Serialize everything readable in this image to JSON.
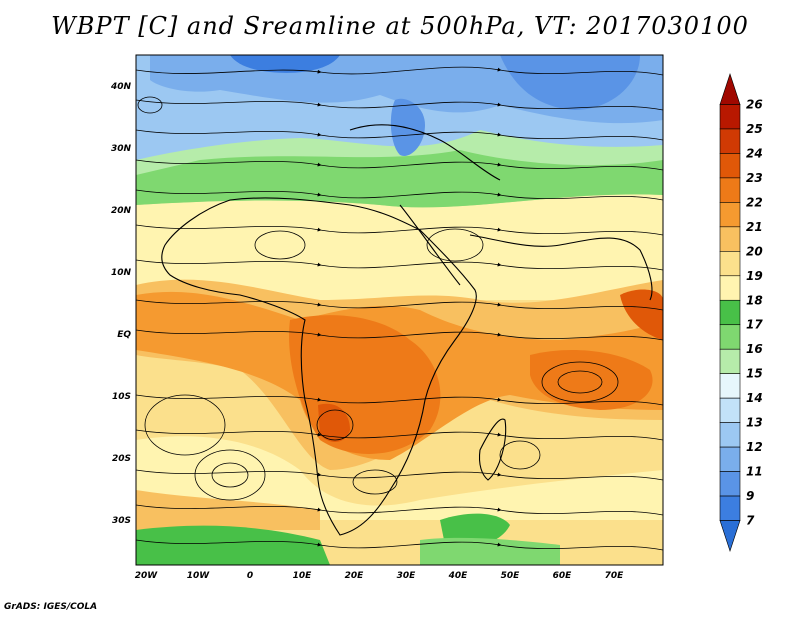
{
  "title": "WBPT [C] and Sreamline at 500hPa, VT: 2017030100",
  "footer": "GrADS: IGES/COLA",
  "map": {
    "lat_labels": [
      "40N",
      "30N",
      "20N",
      "10N",
      "EQ",
      "10S",
      "20S",
      "30S"
    ],
    "lon_labels": [
      "20W",
      "10W",
      "0",
      "10E",
      "20E",
      "30E",
      "40E",
      "50E",
      "60E",
      "70E"
    ],
    "lon_range": [
      -22,
      80
    ],
    "lat_range": [
      -36,
      45
    ]
  },
  "colorbar": {
    "levels": [
      "7",
      "9",
      "11",
      "12",
      "13",
      "14",
      "15",
      "16",
      "17",
      "18",
      "19",
      "20",
      "21",
      "22",
      "23",
      "24",
      "25",
      "26"
    ],
    "colors": [
      "#2a6fd6",
      "#3c7ee0",
      "#5a94e6",
      "#7aaeec",
      "#9cc8f2",
      "#c2e2f8",
      "#e6f7fc",
      "#b6ecaa",
      "#7fd870",
      "#48c048",
      "#fff4b0",
      "#fbe08c",
      "#f8c060",
      "#f59a30",
      "#ee7a18",
      "#e05808",
      "#d03a04",
      "#b81800",
      "#a00800"
    ]
  }
}
